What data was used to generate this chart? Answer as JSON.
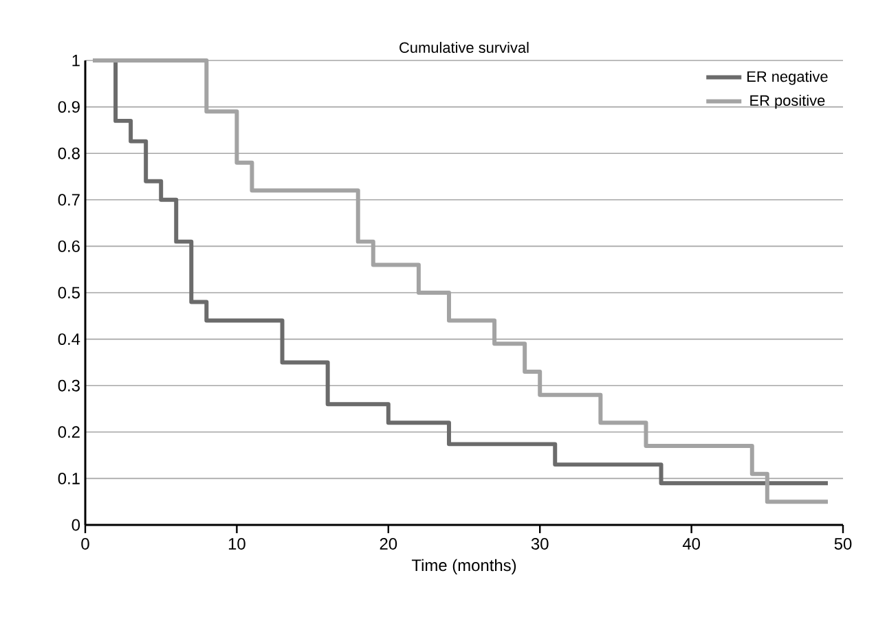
{
  "chart_data": {
    "type": "step",
    "title": "Cumulative survival",
    "xlabel": "Time (months)",
    "xlim": [
      0,
      50
    ],
    "xticks": [
      0,
      10,
      20,
      30,
      40,
      50
    ],
    "ylim": [
      0,
      1
    ],
    "yticks": [
      0,
      0.1,
      0.2,
      0.3,
      0.4,
      0.5,
      0.6,
      0.7,
      0.8,
      0.9,
      1
    ],
    "grid": "y",
    "legend": "top right",
    "line_style": "solid",
    "series": [
      {
        "name": "ER negative",
        "color": "#6b6b6b",
        "x": [
          0.5,
          2,
          3,
          4,
          5,
          6,
          7,
          8,
          13,
          16,
          20,
          24,
          31,
          38,
          49
        ],
        "values": [
          1,
          0.87,
          0.826,
          0.74,
          0.7,
          0.61,
          0.48,
          0.44,
          0.35,
          0.26,
          0.22,
          0.174,
          0.13,
          0.09,
          0.09
        ]
      },
      {
        "name": "ER positive",
        "color": "#a3a3a3",
        "x": [
          0.5,
          8,
          10,
          11,
          18,
          19,
          22,
          24,
          27,
          29,
          30,
          34,
          37,
          44,
          45,
          49
        ],
        "values": [
          1,
          0.89,
          0.78,
          0.72,
          0.61,
          0.56,
          0.5,
          0.44,
          0.39,
          0.33,
          0.28,
          0.22,
          0.17,
          0.11,
          0.05,
          0.05
        ]
      }
    ]
  }
}
